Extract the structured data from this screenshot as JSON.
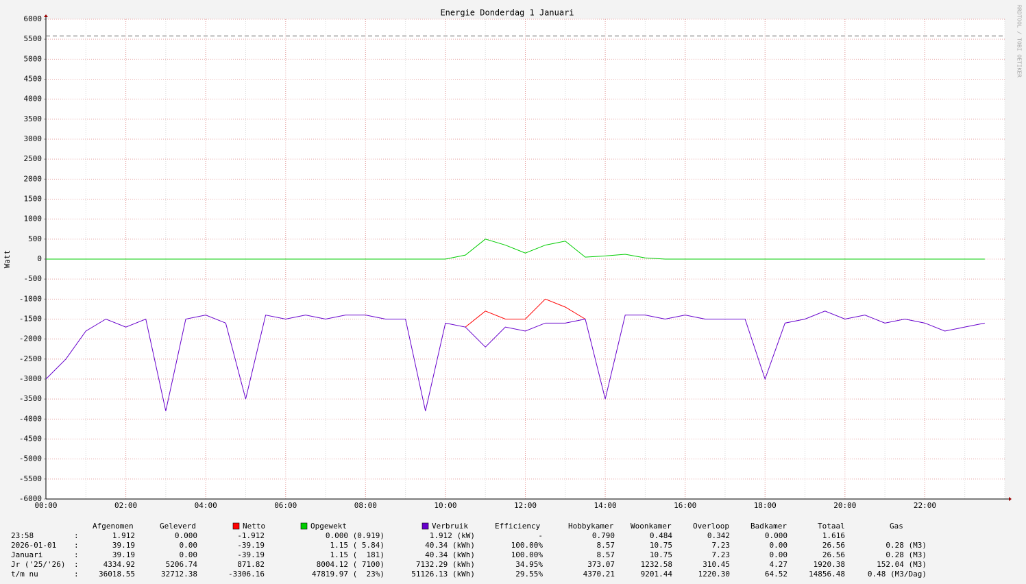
{
  "chart_data": {
    "type": "line",
    "title": "Energie Donderdag 1 Januari",
    "ylabel": "Watt",
    "watermark": "RRDTOOL / TOBI OETIKER",
    "x": [
      0,
      0.5,
      1,
      1.5,
      2,
      2.5,
      3,
      3.5,
      4,
      4.5,
      5,
      5.5,
      6,
      6.5,
      7,
      7.5,
      8,
      8.5,
      9,
      9.5,
      10,
      10.5,
      11,
      11.5,
      12,
      12.5,
      13,
      13.5,
      14,
      14.5,
      15,
      15.5,
      16,
      16.5,
      17,
      17.5,
      18,
      18.5,
      19,
      19.5,
      20,
      20.5,
      21,
      21.5,
      22,
      22.5,
      23,
      23.5
    ],
    "xlim": [
      0,
      24
    ],
    "xticks": [
      {
        "value": 0,
        "label": "00:00"
      },
      {
        "value": 2,
        "label": "02:00"
      },
      {
        "value": 4,
        "label": "04:00"
      },
      {
        "value": 6,
        "label": "06:00"
      },
      {
        "value": 8,
        "label": "08:00"
      },
      {
        "value": 10,
        "label": "10:00"
      },
      {
        "value": 12,
        "label": "12:00"
      },
      {
        "value": 14,
        "label": "14:00"
      },
      {
        "value": 16,
        "label": "16:00"
      },
      {
        "value": 18,
        "label": "18:00"
      },
      {
        "value": 20,
        "label": "20:00"
      },
      {
        "value": 22,
        "label": "22:00"
      }
    ],
    "ylim": [
      -6000,
      6000
    ],
    "yticks": [
      -6000,
      -5500,
      -5000,
      -4500,
      -4000,
      -3500,
      -3000,
      -2500,
      -2000,
      -1500,
      -1000,
      -500,
      0,
      500,
      1000,
      1500,
      2000,
      2500,
      3000,
      3500,
      4000,
      4500,
      5000,
      5500,
      6000
    ],
    "grid": true,
    "hrule": 5580,
    "series": [
      {
        "name": "Netto",
        "color": "#ff0000",
        "values": [
          null,
          null,
          null,
          null,
          null,
          null,
          null,
          null,
          null,
          null,
          null,
          null,
          null,
          null,
          null,
          null,
          null,
          null,
          null,
          null,
          null,
          -1700,
          -1300,
          -1500,
          -1500,
          -1000,
          -1200,
          -1500,
          null,
          null,
          null,
          null,
          null,
          null,
          null,
          null,
          null,
          null,
          null,
          null,
          null,
          null,
          null,
          null,
          null,
          null,
          null,
          null
        ]
      },
      {
        "name": "Opgewekt",
        "color": "#00cc00",
        "values": [
          0,
          0,
          0,
          0,
          0,
          0,
          0,
          0,
          0,
          0,
          0,
          0,
          0,
          0,
          0,
          0,
          0,
          0,
          0,
          0,
          0,
          100,
          500,
          350,
          150,
          350,
          450,
          50,
          80,
          120,
          30,
          0,
          0,
          0,
          0,
          0,
          0,
          0,
          0,
          0,
          0,
          0,
          0,
          0,
          0,
          0,
          0,
          0
        ]
      },
      {
        "name": "Verbruik",
        "color": "#6600cc",
        "values": [
          -3000,
          -2500,
          -1800,
          -1500,
          -1700,
          -1500,
          -3800,
          -1500,
          -1400,
          -1600,
          -3500,
          -1400,
          -1500,
          -1400,
          -1500,
          -1400,
          -1400,
          -1500,
          -1500,
          -3800,
          -1600,
          -1700,
          -2200,
          -1700,
          -1800,
          -1600,
          -1600,
          -1500,
          -3500,
          -1400,
          -1400,
          -1500,
          -1400,
          -1500,
          -1500,
          -1500,
          -3000,
          -1600,
          -1500,
          -1300,
          -1500,
          -1400,
          -1600,
          -1500,
          -1600,
          -1800,
          -1700,
          -1600
        ]
      }
    ],
    "table": {
      "header": [
        "Afgenomen",
        "Geleverd",
        "Efficiency",
        "Hobbykamer",
        "Woonkamer",
        "Overloop",
        "Badkamer",
        "Totaal",
        "Gas"
      ],
      "rows": [
        [
          "23:58",
          ":",
          "1.912",
          "0.000",
          "-1.912",
          "0.000 (0.919)",
          "1.912 (kW)",
          "-",
          "0.790",
          "0.484",
          "0.342",
          "0.000",
          "1.616",
          null
        ],
        [
          "2026-01-01",
          ":",
          "39.19",
          "0.00",
          "-39.19",
          "1.15 ( 5.84)",
          "40.34 (kWh)",
          "100.00%",
          "8.57",
          "10.75",
          "7.23",
          "0.00",
          "26.56",
          "0.28 (M3)"
        ],
        [
          "Januari",
          ":",
          "39.19",
          "0.00",
          "-39.19",
          "1.15 (  181)",
          "40.34 (kWh)",
          "100.00%",
          "8.57",
          "10.75",
          "7.23",
          "0.00",
          "26.56",
          "0.28 (M3)"
        ],
        [
          "Jr ('25/'26)",
          ":",
          "4334.92",
          "5206.74",
          "871.82",
          "8004.12 ( 7100)",
          "7132.29 (kWh)",
          "34.95%",
          "373.07",
          "1232.58",
          "310.45",
          "4.27",
          "1920.38",
          "152.04 (M3)"
        ],
        [
          "t/m nu",
          ":",
          "36018.55",
          "32712.38",
          "-3306.16",
          "47819.97 (  23%)",
          "51126.13 (kWh)",
          "29.55%",
          "4370.21",
          "9201.44",
          "1220.30",
          "64.52",
          "14856.48",
          "0.48 (M3/Dag)"
        ]
      ]
    }
  }
}
